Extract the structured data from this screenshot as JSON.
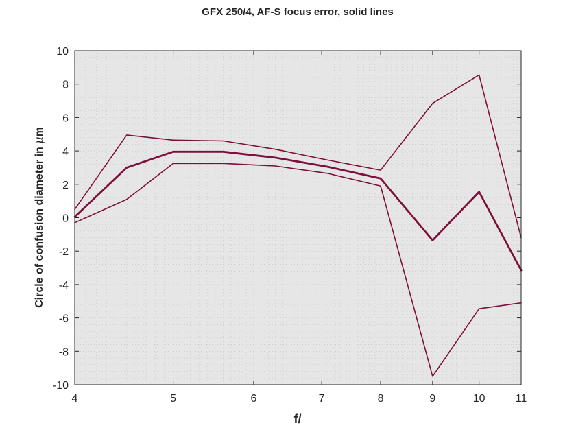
{
  "chart_data": {
    "type": "line",
    "title": "GFX 250/4, AF-S focus error, solid lines",
    "xlabel": "f/",
    "ylabel_prefix": "Circle of confusion diameter in ",
    "ylabel_mu": "μ",
    "ylabel_unit": "m",
    "x_scale": "log",
    "xlim": [
      4,
      11
    ],
    "ylim": [
      -10,
      10
    ],
    "x_ticks": [
      4,
      5,
      6,
      7,
      8,
      9,
      10,
      11
    ],
    "x_tick_labels": [
      "4",
      "5",
      "6",
      "7",
      "8",
      "9",
      "10",
      "11"
    ],
    "y_ticks": [
      -10,
      -8,
      -6,
      -4,
      -2,
      0,
      2,
      4,
      6,
      8,
      10
    ],
    "y_tick_labels": [
      "-10",
      "-8",
      "-6",
      "-4",
      "-2",
      "0",
      "2",
      "4",
      "6",
      "8",
      "10"
    ],
    "grid": "minor dotted",
    "background": "#e6e6e6",
    "line_color": "#7e0f3a",
    "x": [
      4,
      4.5,
      5,
      5.6,
      6.3,
      7.1,
      8,
      9,
      10,
      11
    ],
    "series": [
      {
        "values": [
          0.5,
          4.95,
          4.65,
          4.6,
          4.1,
          3.45,
          2.85,
          6.85,
          8.55,
          -1.2
        ],
        "width": 1.6
      },
      {
        "values": [
          0.05,
          3.0,
          3.95,
          3.95,
          3.6,
          3.05,
          2.35,
          -1.35,
          1.55,
          -3.15
        ],
        "width": 2.8
      },
      {
        "values": [
          -0.3,
          1.1,
          3.25,
          3.25,
          3.1,
          2.65,
          1.9,
          -9.5,
          -5.45,
          -5.1
        ],
        "width": 1.6
      }
    ]
  }
}
